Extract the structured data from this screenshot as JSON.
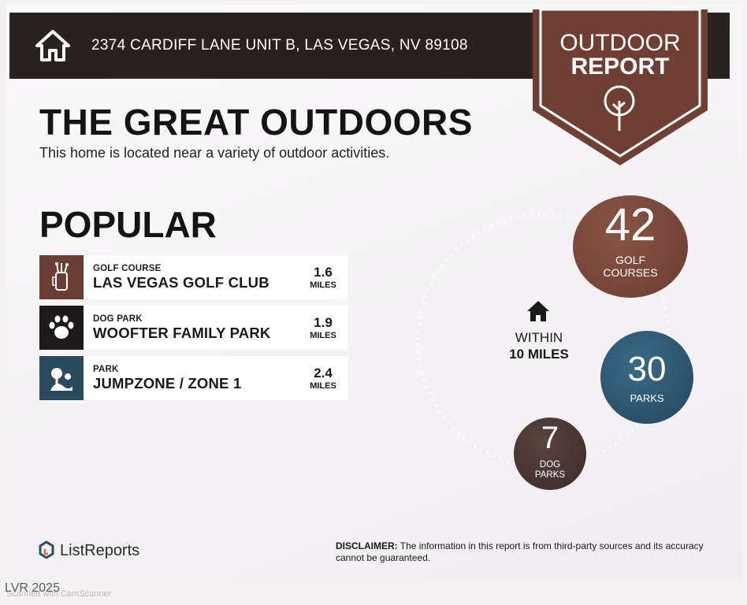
{
  "header": {
    "address": "2374 CARDIFF LANE UNIT B, LAS VEGAS, NV 89108",
    "home_icon": "home-icon"
  },
  "badge": {
    "line1": "OUTDOOR",
    "line2": "REPORT",
    "icon": "tree-icon",
    "color": "#6f3f33"
  },
  "main": {
    "title": "THE GREAT OUTDOORS",
    "subtitle": "This home is located near a variety of outdoor activities.",
    "section_title": "POPULAR"
  },
  "popular": [
    {
      "category": "GOLF COURSE",
      "name": "LAS VEGAS GOLF CLUB",
      "distance": "1.6",
      "unit": "MILES",
      "icon": "golf-bag-icon",
      "color": "#6a3e35"
    },
    {
      "category": "DOG PARK",
      "name": "WOOFTER FAMILY PARK",
      "distance": "1.9",
      "unit": "MILES",
      "icon": "paw-icon",
      "color": "#1e1a1a"
    },
    {
      "category": "PARK",
      "name": "JUMPZONE / ZONE 1",
      "distance": "2.4",
      "unit": "MILES",
      "icon": "park-icon",
      "color": "#2b4a5e"
    }
  ],
  "stats": {
    "within_line1": "WITHIN",
    "within_line2": "10 MILES",
    "golf": {
      "count": "42",
      "label_line1": "GOLF",
      "label_line2": "COURSES",
      "color": "#6f3f33"
    },
    "parks": {
      "count": "30",
      "label": "PARKS",
      "color": "#2c536b"
    },
    "dog_parks": {
      "count": "7",
      "label_line1": "DOG",
      "label_line2": "PARKS",
      "color": "#4a3634"
    }
  },
  "footer": {
    "brand": "ListReports",
    "disclaimer_label": "DISCLAIMER:",
    "disclaimer_text": "The information in this report is from third-party sources and its accuracy cannot be guaranteed.",
    "watermark": "LVR 2025",
    "scanner": "Scanned with CamScanner"
  }
}
